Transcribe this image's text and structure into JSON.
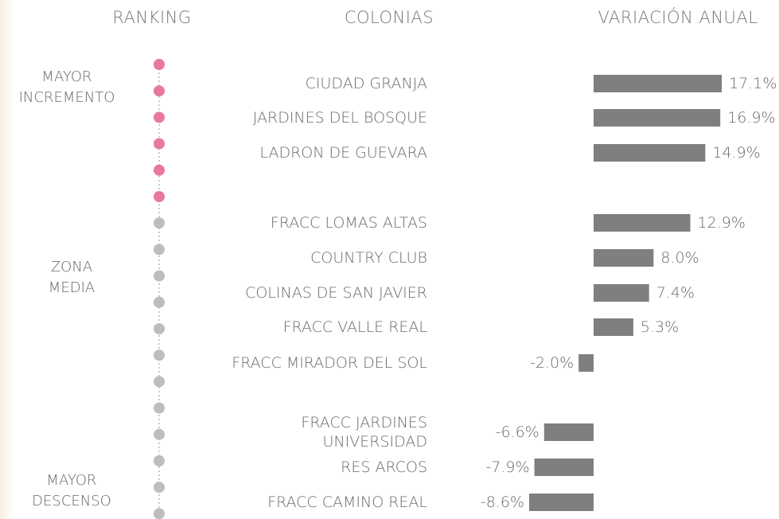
{
  "chart_data": {
    "type": "bar",
    "headers": [
      "RANKING",
      "COLONIAS",
      "VARIACIÓN ANUAL"
    ],
    "groups": [
      "MAYOR\nINCREMENTO",
      "ZONA\nMEDIA",
      "MAYOR\nDESCENSO"
    ],
    "categories": [
      "CIUDAD GRANJA",
      "JARDINES DEL BOSQUE",
      "LADRON DE GUEVARA",
      "FRACC LOMAS ALTAS",
      "COUNTRY CLUB",
      "COLINAS DE SAN JAVIER",
      "FRACC VALLE REAL",
      "FRACC MIRADOR DEL SOL",
      "FRACC JARDINES\nUNIVERSIDAD",
      "RES ARCOS",
      "FRACC CAMINO REAL"
    ],
    "values": [
      17.1,
      16.9,
      14.9,
      12.9,
      8.0,
      7.4,
      5.3,
      -2.0,
      -6.6,
      -7.9,
      -8.6
    ],
    "value_labels": [
      "17.1%",
      "16.9%",
      "14.9%",
      "12.9%",
      "8.0%",
      "7.4%",
      "5.3%",
      "-2.0%",
      "-6.6%",
      "-7.9%",
      "-8.6%"
    ],
    "color": "#7f7f7f"
  }
}
